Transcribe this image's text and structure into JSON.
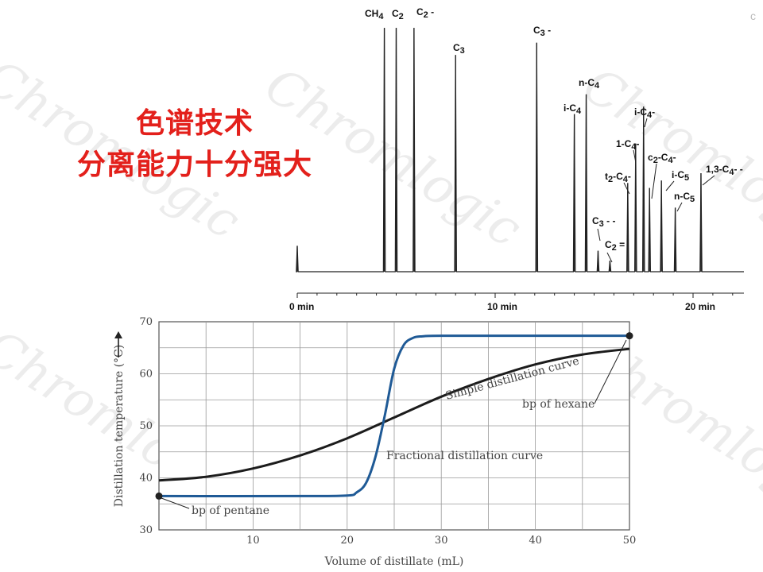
{
  "heading": {
    "line1": "色谱技术",
    "line2": "分离能力十分强大"
  },
  "watermark": "Chromlogic",
  "corner_mark": "c",
  "chart_data": [
    {
      "type": "line",
      "x_unit": "min",
      "xlim": [
        0,
        22.5
      ],
      "x_ticks": [
        {
          "value": 0,
          "label": "0 min"
        },
        {
          "value": 10,
          "label": "10 min"
        },
        {
          "value": 20,
          "label": "20 min"
        }
      ],
      "peaks": [
        {
          "time": 0,
          "height": 0.105,
          "label": ""
        },
        {
          "time": 4.4,
          "height": 0.99,
          "label": "CH4"
        },
        {
          "time": 5.0,
          "height": 0.99,
          "label": "C2"
        },
        {
          "time": 5.9,
          "height": 0.99,
          "label": "C2 -"
        },
        {
          "time": 8.0,
          "height": 0.88,
          "label": "C3"
        },
        {
          "time": 12.1,
          "height": 0.93,
          "label": "C3 -"
        },
        {
          "time": 14.0,
          "height": 0.64,
          "label": "i-C4"
        },
        {
          "time": 14.6,
          "height": 0.72,
          "label": "n-C4"
        },
        {
          "time": 15.2,
          "height": 0.085,
          "label": "C3 - -"
        },
        {
          "time": 15.8,
          "height": 0.045,
          "label": "C2 ="
        },
        {
          "time": 16.7,
          "height": 0.36,
          "label": "t2-C4-"
        },
        {
          "time": 17.1,
          "height": 0.52,
          "label": "1-C4-"
        },
        {
          "time": 17.5,
          "height": 0.67,
          "label": "i-C4-"
        },
        {
          "time": 17.8,
          "height": 0.34,
          "label": "c2-C4-"
        },
        {
          "time": 18.4,
          "height": 0.37,
          "label": "i-C5"
        },
        {
          "time": 19.1,
          "height": 0.26,
          "label": "n-C5"
        },
        {
          "time": 20.4,
          "height": 0.4,
          "label": "1,3-C4- -"
        }
      ]
    },
    {
      "type": "line",
      "xlabel": "Volume of distillate (mL)",
      "ylabel": "Distillation temperature (°C)",
      "xlim": [
        0,
        50
      ],
      "ylim": [
        30,
        70
      ],
      "x_ticks": [
        10,
        20,
        30,
        40,
        50
      ],
      "y_ticks": [
        30,
        40,
        50,
        60,
        70
      ],
      "grid": true,
      "series": [
        {
          "name": "Simple distillation curve",
          "color": "#1c1c1c",
          "x": [
            0,
            5,
            10,
            15,
            20,
            25,
            30,
            35,
            40,
            45,
            50
          ],
          "y": [
            39.5,
            40.2,
            41.8,
            44.3,
            47.6,
            51.6,
            55.6,
            59.0,
            61.8,
            63.7,
            64.8
          ]
        },
        {
          "name": "Fractional distillation curve",
          "color": "#1f5a96",
          "x": [
            0,
            15,
            20,
            21,
            22,
            23,
            24,
            25,
            26,
            27,
            28,
            30,
            40,
            50
          ],
          "y": [
            36.5,
            36.5,
            36.6,
            37.2,
            39.0,
            44.0,
            52.0,
            61.0,
            65.5,
            66.9,
            67.2,
            67.3,
            67.3,
            67.3
          ]
        }
      ],
      "annotations": [
        {
          "text": "Simple distillation curve"
        },
        {
          "text": "Fractional distillation curve"
        },
        {
          "text": "bp of hexane",
          "x": 50,
          "y": 67.3
        },
        {
          "text": "bp of pentane",
          "x": 0,
          "y": 36.5
        }
      ]
    }
  ]
}
